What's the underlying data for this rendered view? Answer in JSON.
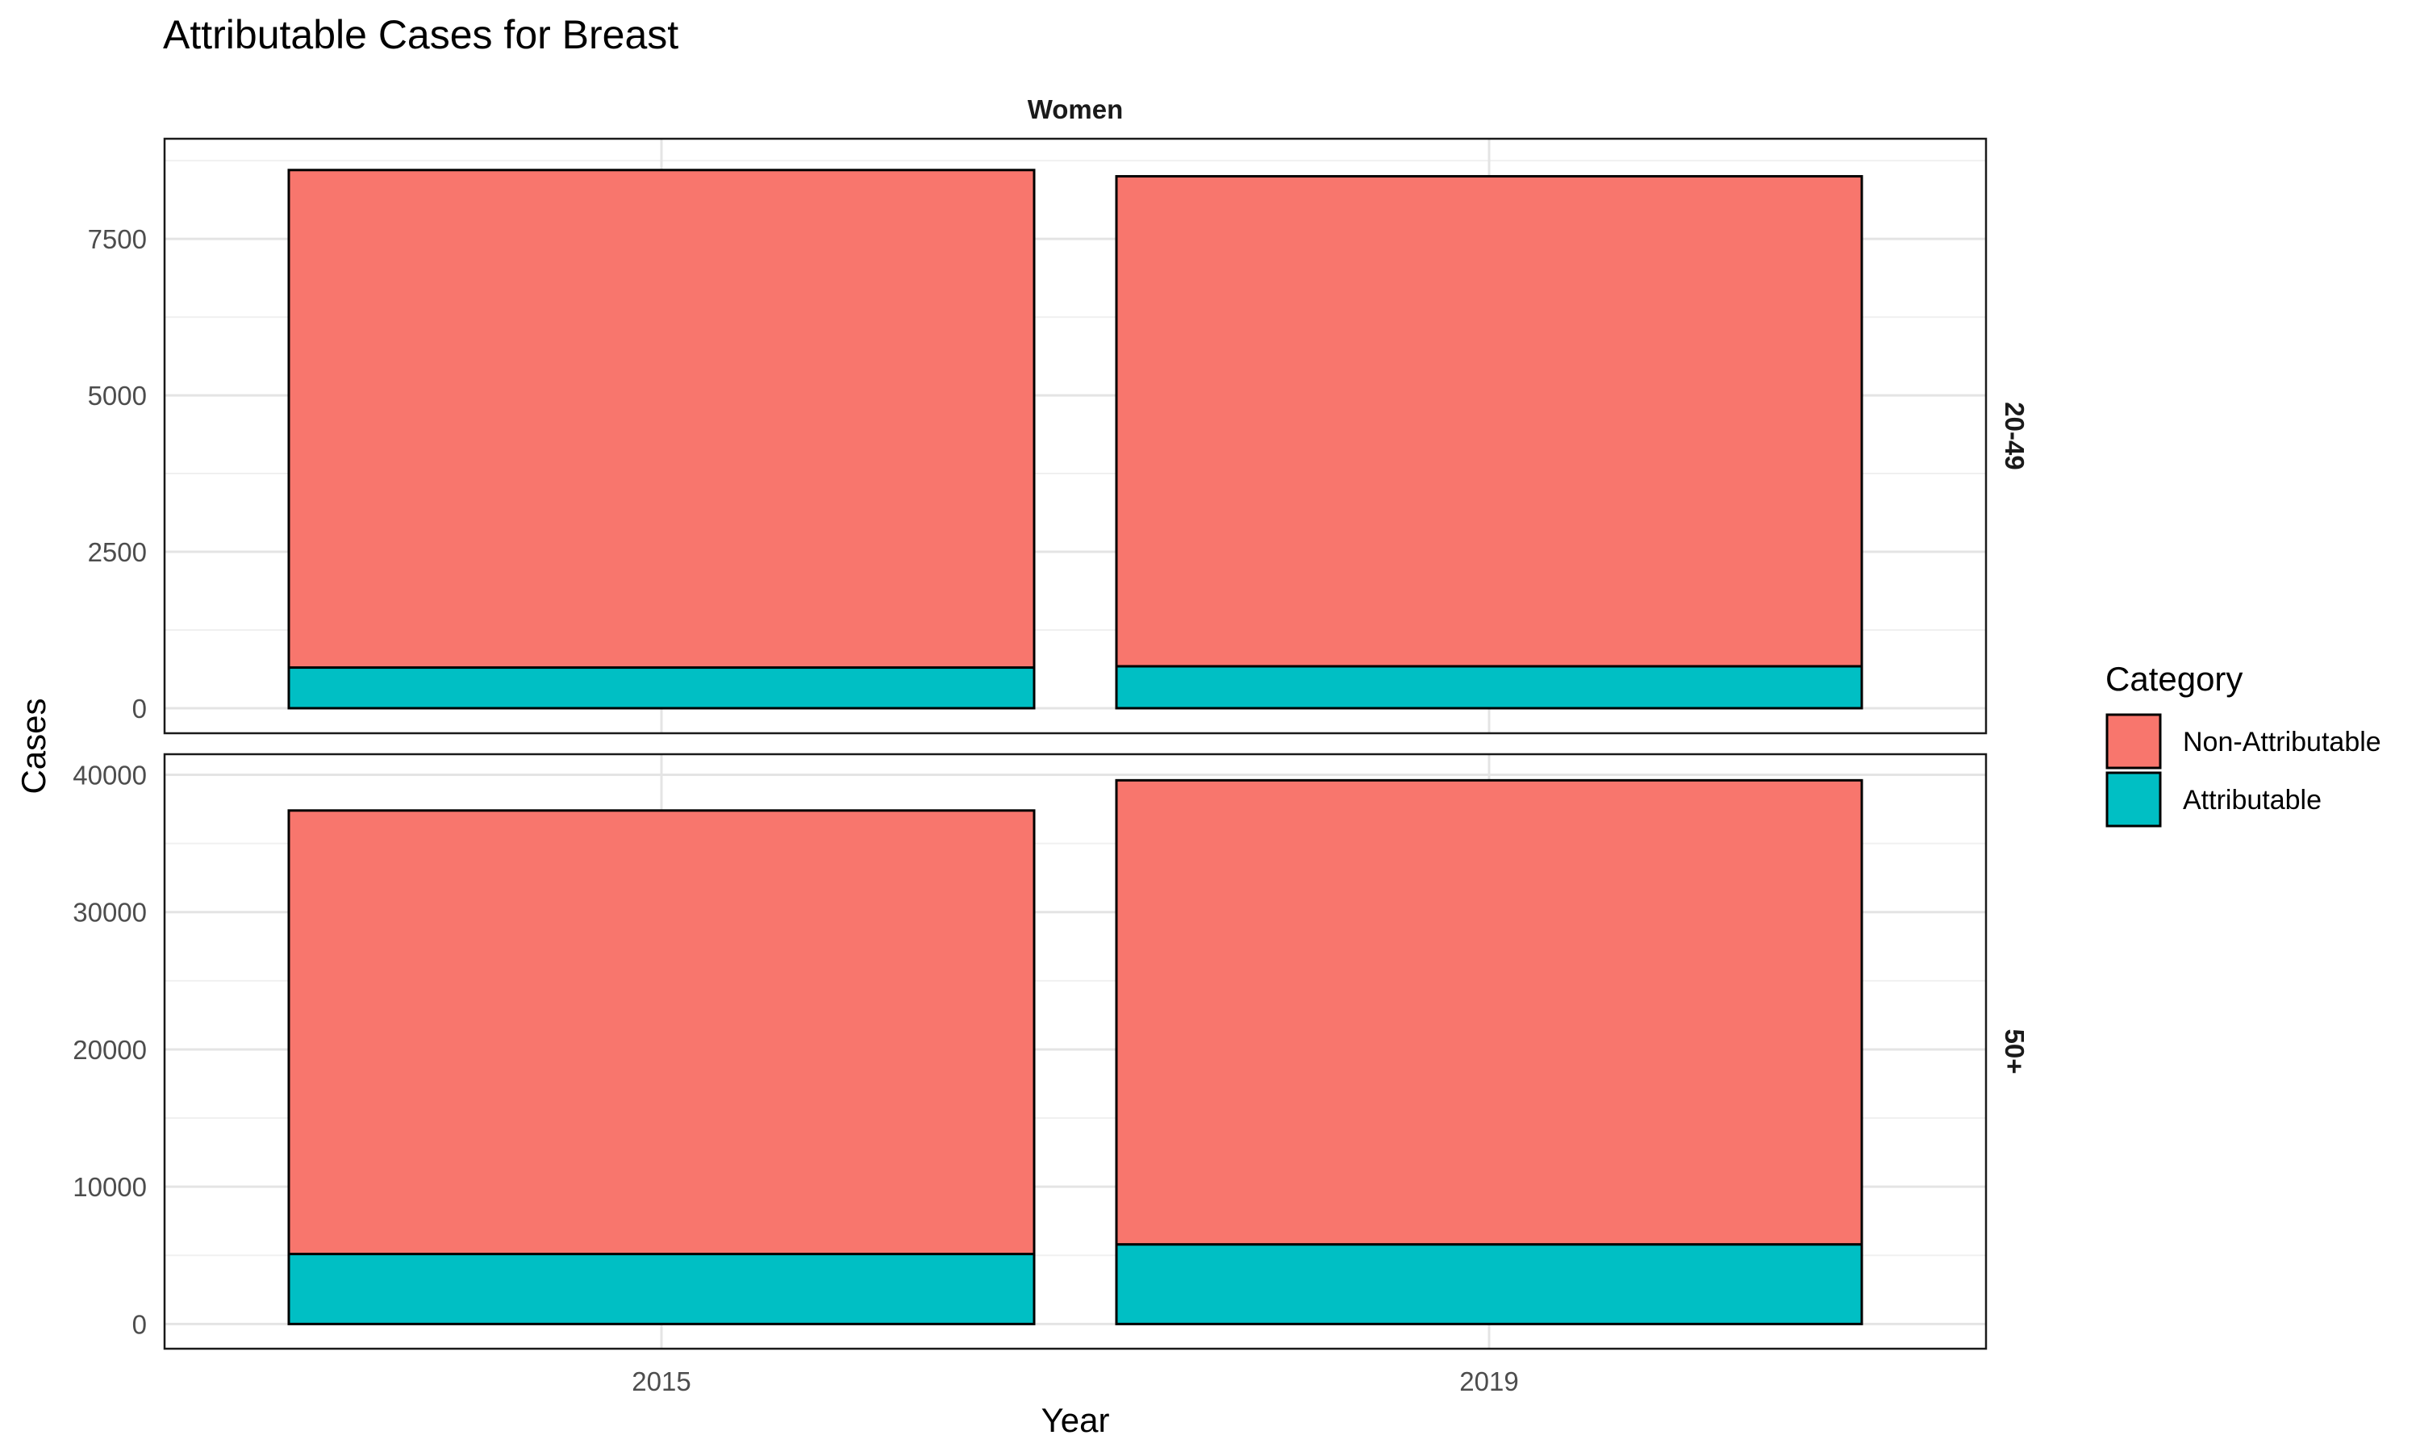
{
  "chart_data": {
    "type": "bar",
    "stacked": true,
    "title": "Attributable Cases for Breast",
    "xlabel": "Year",
    "ylabel": "Cases",
    "facet_column_label": "Women",
    "categories": [
      "2015",
      "2019"
    ],
    "legend": {
      "title": "Category",
      "position": "right",
      "entries": [
        {
          "name": "Non-Attributable",
          "color": "#F8766D"
        },
        {
          "name": "Attributable",
          "color": "#00BFC4"
        }
      ]
    },
    "grid": true,
    "panels": [
      {
        "facet_label": "20-49",
        "ylim": [
          -400,
          9100
        ],
        "yticks": [
          0,
          2500,
          5000,
          7500
        ],
        "series": [
          {
            "name": "Attributable",
            "values": [
              650,
              670
            ]
          },
          {
            "name": "Non-Attributable",
            "values": [
              7950,
              7830
            ]
          }
        ]
      },
      {
        "facet_label": "50+",
        "ylim": [
          -1800,
          41500
        ],
        "yticks": [
          0,
          10000,
          20000,
          30000,
          40000
        ],
        "series": [
          {
            "name": "Attributable",
            "values": [
              5100,
              5800
            ]
          },
          {
            "name": "Non-Attributable",
            "values": [
              32300,
              33800
            ]
          }
        ]
      }
    ]
  }
}
